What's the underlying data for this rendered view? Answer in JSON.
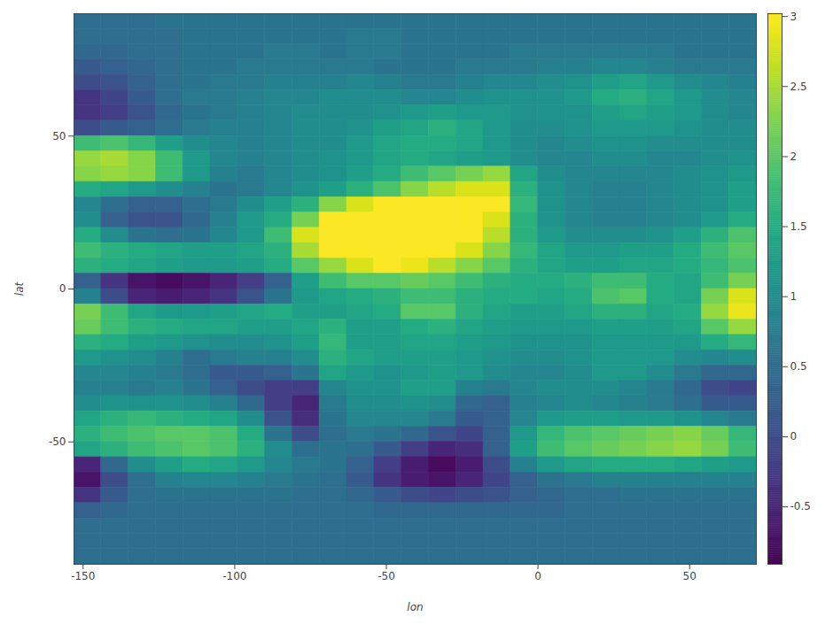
{
  "chart_data": {
    "type": "heatmap",
    "x_label": "lon",
    "y_label": "lat",
    "xlim": [
      -153,
      72
    ],
    "ylim": [
      -90,
      90
    ],
    "xticks": [
      -150,
      -100,
      -50,
      0,
      50
    ],
    "yticks": [
      -50,
      0,
      50
    ],
    "color": "viridis",
    "x": [
      -148.5,
      -139.5,
      -130.5,
      -121.5,
      -112.5,
      -103.5,
      -94.5,
      -85.5,
      -76.5,
      -67.5,
      -58.5,
      -49.5,
      -40.5,
      -31.5,
      -22.5,
      -13.5,
      -4.5,
      4.5,
      13.5,
      22.5,
      31.5,
      40.5,
      49.5,
      58.5,
      67.5
    ],
    "y": [
      87.5,
      82.5,
      77.5,
      72.5,
      67.5,
      62.5,
      57.5,
      52.5,
      47.5,
      42.5,
      37.5,
      32.5,
      27.5,
      22.5,
      17.5,
      12.5,
      7.5,
      2.5,
      -2.5,
      -7.5,
      -12.5,
      -17.5,
      -22.5,
      -27.5,
      -32.5,
      -37.5,
      -42.5,
      -47.5,
      -52.5,
      -57.5,
      -62.5,
      -67.5,
      -72.5,
      -77.5,
      -82.5,
      -87.5
    ],
    "cells": [
      [
        0.5,
        0.5,
        0.5,
        0.6,
        0.6,
        0.6,
        0.6,
        0.6,
        0.6,
        0.6,
        0.6,
        0.6,
        0.6,
        0.6,
        0.6,
        0.6,
        0.6,
        0.6,
        0.6,
        0.6,
        0.6,
        0.6,
        0.6,
        0.6,
        0.6
      ],
      [
        0.5,
        0.5,
        0.5,
        0.5,
        0.6,
        0.6,
        0.6,
        0.6,
        0.6,
        0.6,
        0.7,
        0.7,
        0.6,
        0.6,
        0.6,
        0.6,
        0.6,
        0.6,
        0.6,
        0.6,
        0.6,
        0.6,
        0.6,
        0.6,
        0.6
      ],
      [
        0.4,
        0.4,
        0.5,
        0.5,
        0.6,
        0.6,
        0.6,
        0.7,
        0.7,
        0.6,
        0.7,
        0.7,
        0.6,
        0.6,
        0.6,
        0.6,
        0.7,
        0.7,
        0.7,
        0.7,
        0.7,
        0.7,
        0.6,
        0.6,
        0.6
      ],
      [
        0.2,
        0.3,
        0.4,
        0.5,
        0.6,
        0.6,
        0.7,
        0.7,
        0.7,
        0.7,
        0.7,
        0.6,
        0.6,
        0.6,
        0.7,
        0.7,
        0.7,
        0.8,
        0.8,
        0.9,
        0.9,
        0.8,
        0.7,
        0.7,
        0.7
      ],
      [
        0.0,
        0.1,
        0.3,
        0.5,
        0.6,
        0.7,
        0.7,
        0.8,
        0.8,
        0.8,
        0.9,
        0.8,
        0.7,
        0.7,
        0.8,
        0.9,
        0.9,
        1.0,
        1.1,
        1.3,
        1.4,
        1.2,
        1.0,
        0.9,
        0.8
      ],
      [
        -0.3,
        -0.1,
        0.2,
        0.5,
        0.7,
        0.7,
        0.8,
        0.9,
        0.9,
        1.0,
        1.0,
        1.0,
        0.9,
        0.9,
        1.0,
        1.1,
        1.1,
        1.1,
        1.2,
        1.5,
        1.6,
        1.4,
        1.2,
        1.0,
        0.9
      ],
      [
        -0.3,
        -0.2,
        0.1,
        0.4,
        0.6,
        0.7,
        0.8,
        0.9,
        1.0,
        1.0,
        1.0,
        1.1,
        1.2,
        1.3,
        1.2,
        1.2,
        1.1,
        1.1,
        1.1,
        1.3,
        1.4,
        1.3,
        1.2,
        1.0,
        0.9
      ],
      [
        0.0,
        0.2,
        0.3,
        0.5,
        0.7,
        0.8,
        0.8,
        0.9,
        1.0,
        1.0,
        1.1,
        1.3,
        1.4,
        1.6,
        1.4,
        1.2,
        1.0,
        1.0,
        1.1,
        1.2,
        1.2,
        1.2,
        1.1,
        1.0,
        1.0
      ],
      [
        1.8,
        1.9,
        1.7,
        1.3,
        1.0,
        0.9,
        0.8,
        0.9,
        1.0,
        1.0,
        1.2,
        1.4,
        1.5,
        1.5,
        1.4,
        1.2,
        1.0,
        0.9,
        1.0,
        1.1,
        1.1,
        1.0,
        1.0,
        1.0,
        1.0
      ],
      [
        2.4,
        2.5,
        2.3,
        1.8,
        1.2,
        0.9,
        0.8,
        0.9,
        1.0,
        1.1,
        1.2,
        1.4,
        1.5,
        1.4,
        1.3,
        1.2,
        1.0,
        0.9,
        0.9,
        1.0,
        1.0,
        0.9,
        0.9,
        1.0,
        1.1
      ],
      [
        2.3,
        2.4,
        2.3,
        1.8,
        1.2,
        0.8,
        0.7,
        0.9,
        1.0,
        1.1,
        1.3,
        1.5,
        1.8,
        2.0,
        2.2,
        2.4,
        1.4,
        1.0,
        0.9,
        0.9,
        0.9,
        0.9,
        1.0,
        1.1,
        1.2
      ],
      [
        1.5,
        1.4,
        1.2,
        1.0,
        0.8,
        0.6,
        0.7,
        0.9,
        1.1,
        1.3,
        1.6,
        1.9,
        2.3,
        2.6,
        2.8,
        2.8,
        1.6,
        1.1,
        0.9,
        0.8,
        0.8,
        0.9,
        1.0,
        1.1,
        1.3
      ],
      [
        0.9,
        0.5,
        0.3,
        0.3,
        0.5,
        0.7,
        1.0,
        1.3,
        1.6,
        2.3,
        2.8,
        3.0,
        3.0,
        3.0,
        3.0,
        3.0,
        1.7,
        1.1,
        0.9,
        0.8,
        0.8,
        0.9,
        1.0,
        1.1,
        1.3
      ],
      [
        1.0,
        0.3,
        0.1,
        0.1,
        0.4,
        0.8,
        1.2,
        1.5,
        2.2,
        3.0,
        3.0,
        3.0,
        3.0,
        3.0,
        3.0,
        2.8,
        1.6,
        1.1,
        0.9,
        0.8,
        0.8,
        0.9,
        1.0,
        1.2,
        1.5
      ],
      [
        1.5,
        1.0,
        0.6,
        0.5,
        0.6,
        0.9,
        1.2,
        1.8,
        2.8,
        3.0,
        3.0,
        3.0,
        3.0,
        3.0,
        3.0,
        2.6,
        1.6,
        1.2,
        1.0,
        1.0,
        1.0,
        1.1,
        1.3,
        1.6,
        1.9
      ],
      [
        1.8,
        1.6,
        1.5,
        1.4,
        1.3,
        1.3,
        1.4,
        1.6,
        2.5,
        3.0,
        3.0,
        3.0,
        3.0,
        3.0,
        2.8,
        2.3,
        1.7,
        1.4,
        1.2,
        1.2,
        1.3,
        1.3,
        1.5,
        1.8,
        2.0
      ],
      [
        1.6,
        1.5,
        1.4,
        1.3,
        1.2,
        1.2,
        1.3,
        1.5,
        2.0,
        2.4,
        2.8,
        3.0,
        2.9,
        2.6,
        2.3,
        2.0,
        1.6,
        1.4,
        1.3,
        1.3,
        1.4,
        1.4,
        1.5,
        1.7,
        1.9
      ],
      [
        0.3,
        -0.3,
        -0.7,
        -0.8,
        -0.7,
        -0.5,
        -0.2,
        0.3,
        1.3,
        1.8,
        2.0,
        2.0,
        2.1,
        2.0,
        1.8,
        1.6,
        1.5,
        1.5,
        1.6,
        1.8,
        1.8,
        1.5,
        1.4,
        1.8,
        2.2
      ],
      [
        0.8,
        0.0,
        -0.5,
        -0.6,
        -0.5,
        -0.3,
        0.1,
        0.6,
        1.2,
        1.4,
        1.5,
        1.6,
        1.8,
        1.8,
        1.6,
        1.5,
        1.5,
        1.4,
        1.5,
        1.9,
        2.0,
        1.5,
        1.4,
        2.2,
        2.8
      ],
      [
        2.2,
        1.8,
        1.4,
        1.2,
        1.2,
        1.3,
        1.4,
        1.5,
        1.3,
        1.3,
        1.4,
        1.5,
        2.0,
        2.0,
        1.6,
        1.4,
        1.3,
        1.3,
        1.4,
        1.6,
        1.6,
        1.4,
        1.5,
        2.4,
        2.9
      ],
      [
        2.1,
        1.8,
        1.6,
        1.5,
        1.4,
        1.4,
        1.3,
        1.3,
        1.4,
        1.6,
        1.3,
        1.3,
        1.5,
        1.6,
        1.4,
        1.3,
        1.2,
        1.2,
        1.2,
        1.3,
        1.3,
        1.3,
        1.4,
        2.0,
        2.4
      ],
      [
        1.6,
        1.5,
        1.3,
        1.2,
        1.1,
        1.0,
        1.0,
        1.1,
        1.3,
        1.7,
        1.3,
        1.3,
        1.4,
        1.4,
        1.3,
        1.2,
        1.1,
        1.1,
        1.1,
        1.2,
        1.2,
        1.2,
        1.2,
        1.5,
        1.7
      ],
      [
        1.2,
        1.1,
        1.0,
        0.8,
        0.5,
        0.7,
        0.8,
        0.8,
        1.0,
        1.6,
        1.4,
        1.3,
        1.3,
        1.3,
        1.2,
        1.1,
        1.0,
        1.0,
        1.1,
        1.2,
        1.2,
        1.2,
        1.0,
        0.9,
        1.0
      ],
      [
        0.9,
        0.9,
        0.8,
        0.7,
        0.5,
        0.2,
        0.2,
        0.3,
        0.6,
        1.4,
        1.2,
        1.1,
        1.2,
        1.3,
        1.2,
        1.0,
        0.9,
        0.9,
        1.0,
        1.2,
        1.2,
        1.0,
        0.7,
        0.4,
        0.4
      ],
      [
        0.8,
        0.8,
        0.7,
        0.8,
        0.6,
        0.3,
        0.0,
        -0.2,
        -0.2,
        0.9,
        1.1,
        1.1,
        1.3,
        1.3,
        0.8,
        0.7,
        0.9,
        1.0,
        1.0,
        1.0,
        0.9,
        0.7,
        0.4,
        0.0,
        -0.1
      ],
      [
        1.0,
        1.1,
        1.1,
        1.1,
        1.0,
        0.8,
        0.4,
        -0.2,
        -0.5,
        0.7,
        1.0,
        1.0,
        1.1,
        1.0,
        0.4,
        0.3,
        0.8,
        0.9,
        1.0,
        0.9,
        0.8,
        0.7,
        0.5,
        0.2,
        0.2
      ],
      [
        1.4,
        1.6,
        1.7,
        1.6,
        1.5,
        1.4,
        1.0,
        0.1,
        -0.4,
        0.6,
        0.9,
        0.9,
        0.9,
        0.7,
        0.2,
        0.3,
        0.9,
        1.2,
        1.3,
        1.3,
        1.2,
        1.2,
        1.1,
        0.9,
        0.7
      ],
      [
        1.6,
        1.8,
        1.9,
        2.0,
        2.0,
        1.9,
        1.5,
        0.6,
        0.0,
        0.5,
        0.7,
        0.6,
        0.4,
        0.1,
        -0.1,
        0.3,
        1.2,
        1.7,
        1.9,
        2.0,
        2.1,
        2.2,
        2.3,
        2.1,
        1.7
      ],
      [
        1.4,
        1.6,
        1.8,
        1.9,
        2.0,
        1.9,
        1.6,
        1.0,
        0.5,
        0.6,
        0.5,
        0.2,
        -0.2,
        -0.5,
        -0.4,
        0.3,
        1.3,
        1.8,
        2.0,
        2.1,
        2.2,
        2.3,
        2.4,
        2.2,
        1.8
      ],
      [
        -0.5,
        0.4,
        1.0,
        1.3,
        1.5,
        1.4,
        1.2,
        0.9,
        0.7,
        0.6,
        0.3,
        -0.2,
        -0.6,
        -0.8,
        -0.6,
        0.0,
        0.8,
        1.2,
        1.4,
        1.5,
        1.5,
        1.5,
        1.4,
        1.3,
        1.2
      ],
      [
        -0.7,
        0.0,
        0.5,
        0.8,
        0.9,
        0.9,
        0.8,
        0.7,
        0.6,
        0.5,
        0.2,
        -0.3,
        -0.6,
        -0.7,
        -0.5,
        -0.1,
        0.3,
        0.6,
        0.7,
        0.8,
        0.8,
        0.8,
        0.8,
        0.8,
        0.8
      ],
      [
        -0.3,
        0.2,
        0.5,
        0.6,
        0.6,
        0.6,
        0.6,
        0.6,
        0.5,
        0.5,
        0.4,
        0.2,
        0.0,
        -0.1,
        0.0,
        0.1,
        0.3,
        0.4,
        0.5,
        0.5,
        0.6,
        0.6,
        0.6,
        0.6,
        0.6
      ],
      [
        0.3,
        0.4,
        0.5,
        0.5,
        0.5,
        0.5,
        0.5,
        0.5,
        0.5,
        0.5,
        0.5,
        0.4,
        0.4,
        0.4,
        0.4,
        0.4,
        0.4,
        0.4,
        0.5,
        0.5,
        0.5,
        0.5,
        0.5,
        0.5,
        0.5
      ],
      [
        0.5,
        0.5,
        0.5,
        0.5,
        0.5,
        0.5,
        0.5,
        0.5,
        0.5,
        0.5,
        0.5,
        0.5,
        0.5,
        0.5,
        0.5,
        0.5,
        0.5,
        0.5,
        0.5,
        0.5,
        0.5,
        0.5,
        0.5,
        0.5,
        0.5
      ],
      [
        0.5,
        0.5,
        0.5,
        0.5,
        0.5,
        0.5,
        0.5,
        0.5,
        0.5,
        0.5,
        0.5,
        0.5,
        0.5,
        0.5,
        0.5,
        0.5,
        0.5,
        0.5,
        0.5,
        0.5,
        0.5,
        0.5,
        0.5,
        0.5,
        0.5
      ],
      [
        0.5,
        0.5,
        0.5,
        0.5,
        0.5,
        0.5,
        0.5,
        0.5,
        0.5,
        0.5,
        0.5,
        0.5,
        0.5,
        0.5,
        0.5,
        0.5,
        0.5,
        0.5,
        0.5,
        0.5,
        0.5,
        0.5,
        0.5,
        0.5,
        0.5
      ]
    ],
    "colorbar": {
      "range": [
        -0.91,
        3.02
      ],
      "ticks": [
        -0.5,
        0,
        0.5,
        1,
        1.5,
        2,
        2.5,
        3
      ]
    }
  }
}
